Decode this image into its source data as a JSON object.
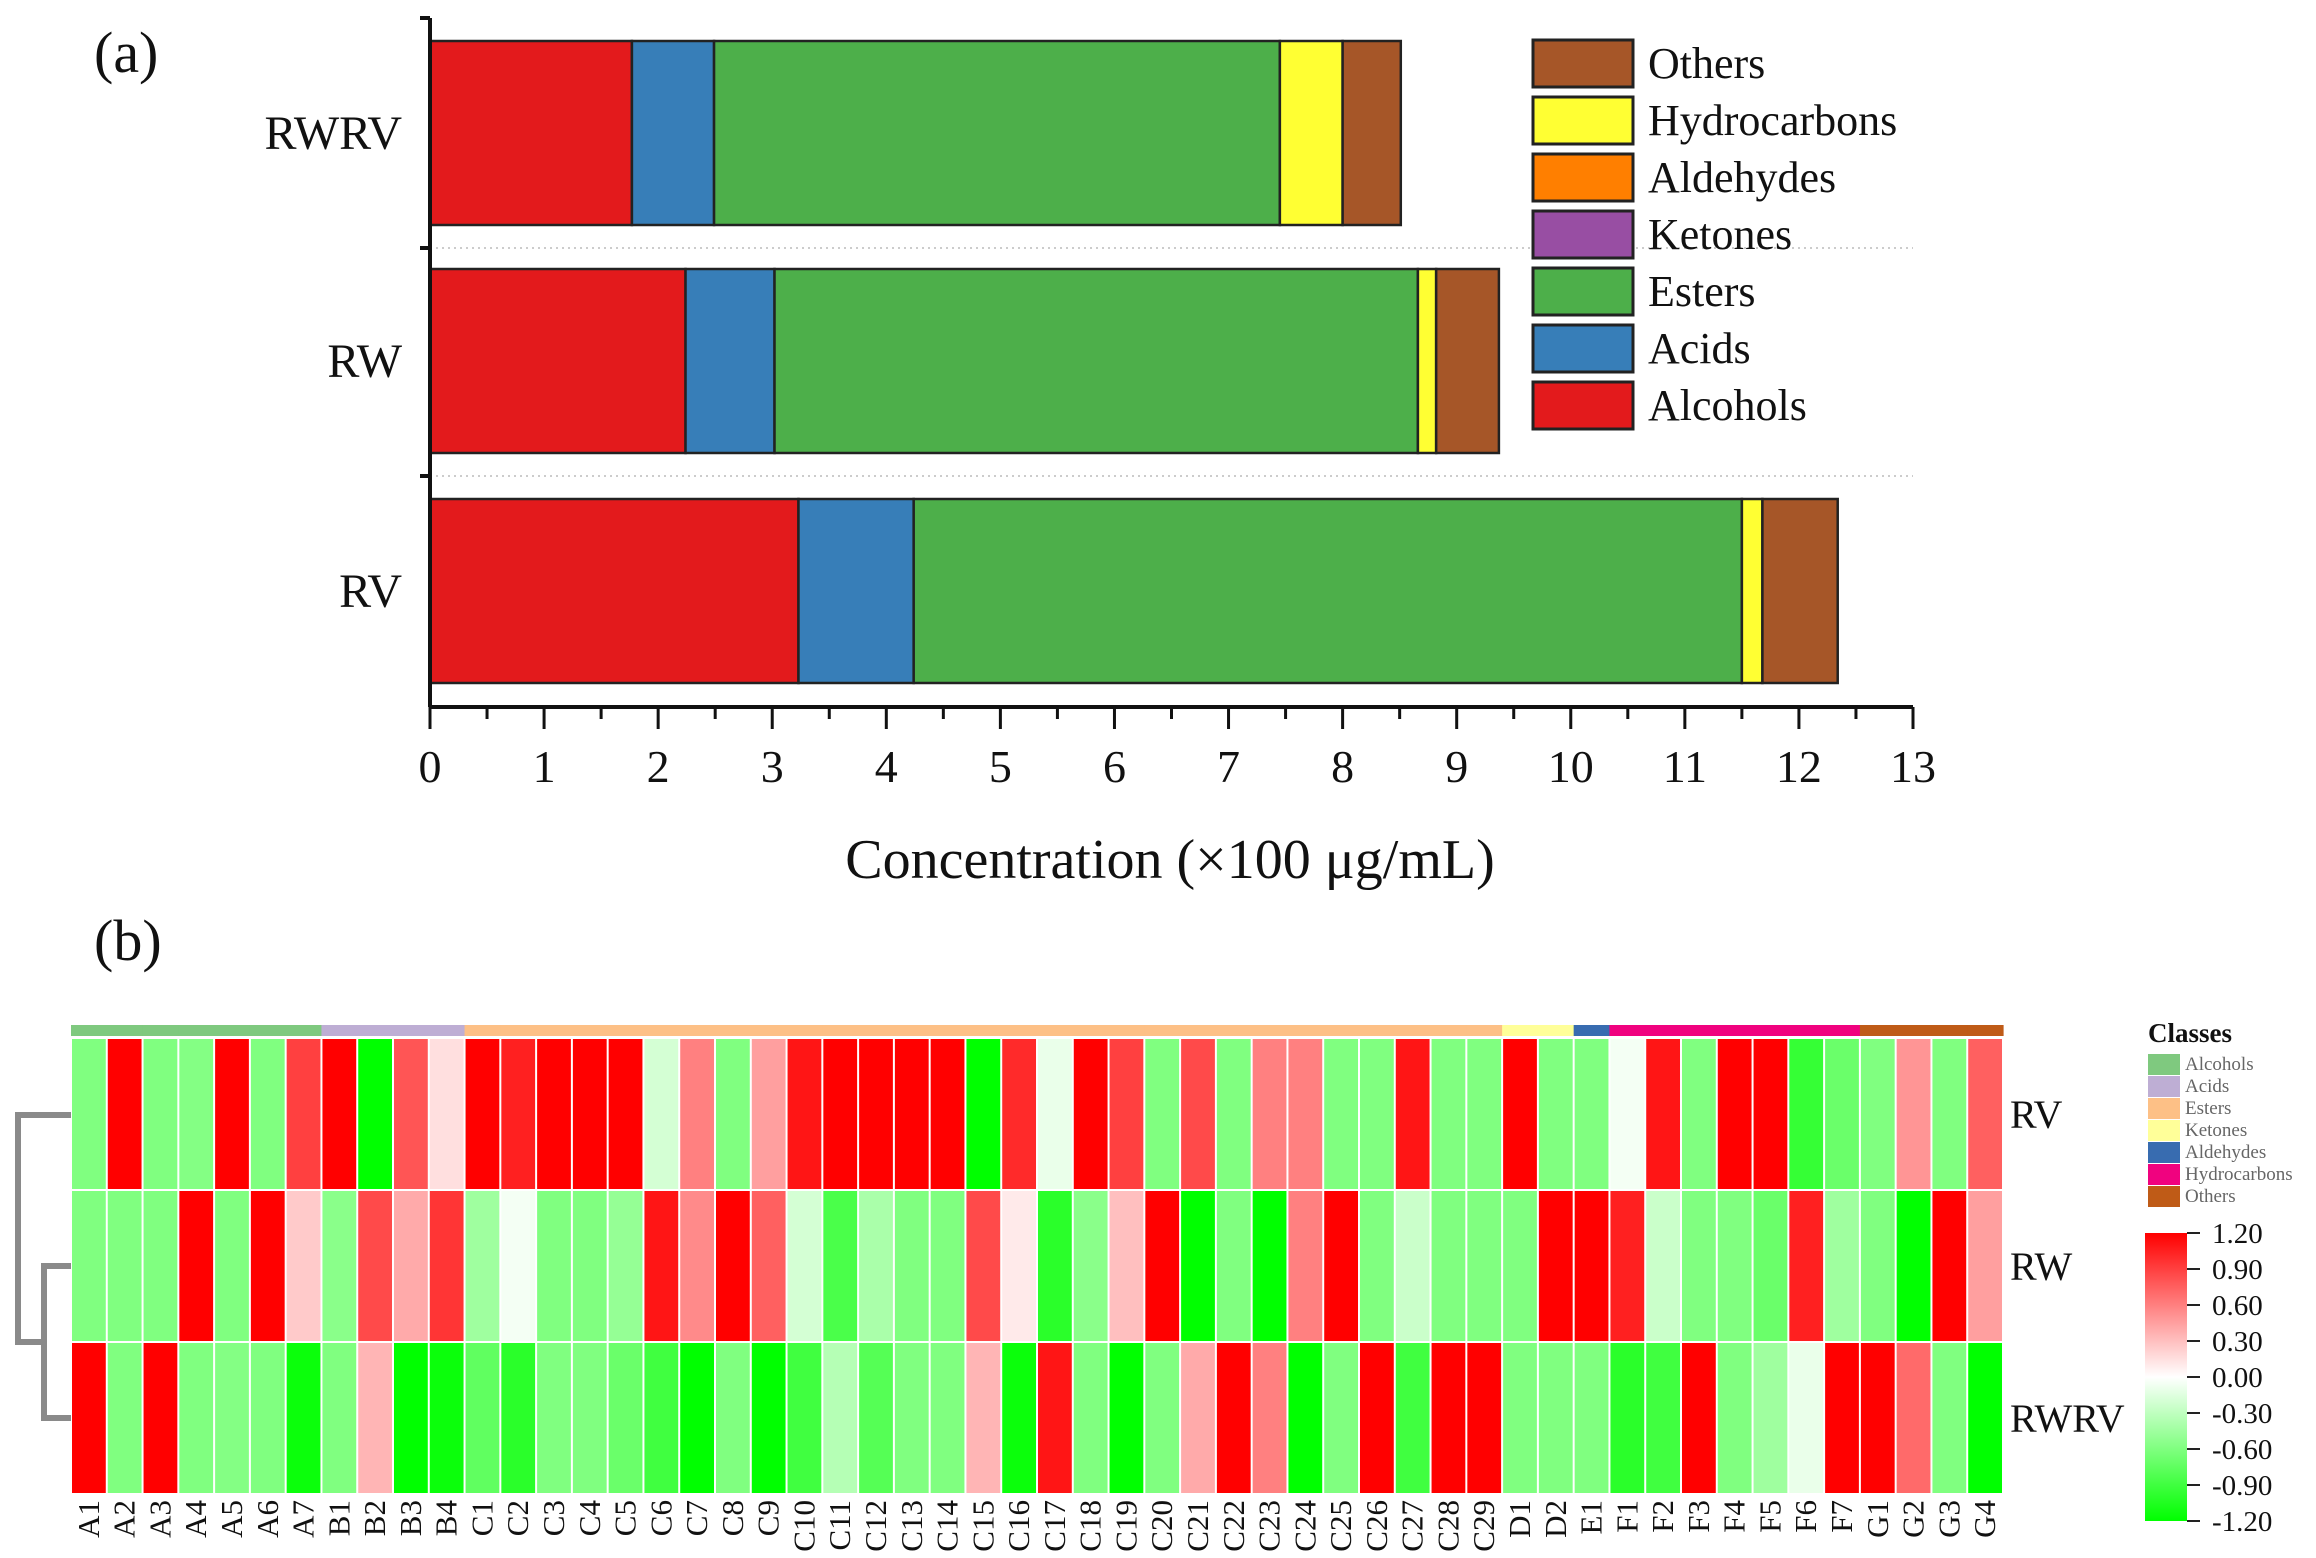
{
  "chart_data": [
    {
      "panel_label": "(a)",
      "type": "bar",
      "orientation": "horizontal-stacked",
      "categories": [
        "RWRV",
        "RW",
        "RV"
      ],
      "series": [
        {
          "name": "Alcohols",
          "color": "#e31a1c",
          "values": [
            1.77,
            2.24,
            3.23
          ]
        },
        {
          "name": "Acids",
          "color": "#377eb8",
          "values": [
            0.72,
            0.78,
            1.01
          ]
        },
        {
          "name": "Esters",
          "color": "#4daf4a",
          "values": [
            4.96,
            5.64,
            7.26
          ]
        },
        {
          "name": "Ketones",
          "color": "#984ea3",
          "values": [
            0,
            0,
            0
          ]
        },
        {
          "name": "Aldehydes",
          "color": "#ff7f00",
          "values": [
            0,
            0,
            0
          ]
        },
        {
          "name": "Hydrocarbons",
          "color": "#ffff33",
          "values": [
            0.55,
            0.16,
            0.18
          ]
        },
        {
          "name": "Others",
          "color": "#a65628",
          "values": [
            0.51,
            0.55,
            0.66
          ]
        }
      ],
      "legend_order": [
        "Others",
        "Hydrocarbons",
        "Aldehydes",
        "Ketones",
        "Esters",
        "Acids",
        "Alcohols"
      ],
      "legend_placement": "top-right",
      "xlabel": "Concentration (×100 μg/mL)",
      "xlim": [
        0,
        13
      ],
      "xticks": [
        "0",
        "1",
        "2",
        "3",
        "4",
        "5",
        "6",
        "7",
        "8",
        "9",
        "10",
        "11",
        "12",
        "13"
      ]
    },
    {
      "panel_label": "(b)",
      "type": "heatmap",
      "rows": [
        "RV",
        "RW",
        "RWRV"
      ],
      "columns": [
        "A1",
        "A2",
        "A3",
        "A4",
        "A5",
        "A6",
        "A7",
        "B1",
        "B2",
        "B3",
        "B4",
        "C1",
        "C2",
        "C3",
        "C4",
        "C5",
        "C6",
        "C7",
        "C8",
        "C9",
        "C10",
        "C11",
        "C12",
        "C13",
        "C14",
        "C15",
        "C16",
        "C17",
        "C18",
        "C19",
        "C20",
        "C21",
        "C22",
        "C23",
        "C24",
        "C25",
        "C26",
        "C27",
        "C28",
        "C29",
        "D1",
        "D2",
        "E1",
        "F1",
        "F2",
        "F3",
        "F4",
        "F5",
        "F6",
        "F7",
        "G1",
        "G2",
        "G3",
        "G4"
      ],
      "column_classes": [
        "Alcohols",
        "Alcohols",
        "Alcohols",
        "Alcohols",
        "Alcohols",
        "Alcohols",
        "Alcohols",
        "Acids",
        "Acids",
        "Acids",
        "Acids",
        "Esters",
        "Esters",
        "Esters",
        "Esters",
        "Esters",
        "Esters",
        "Esters",
        "Esters",
        "Esters",
        "Esters",
        "Esters",
        "Esters",
        "Esters",
        "Esters",
        "Esters",
        "Esters",
        "Esters",
        "Esters",
        "Esters",
        "Esters",
        "Esters",
        "Esters",
        "Esters",
        "Esters",
        "Esters",
        "Esters",
        "Esters",
        "Esters",
        "Esters",
        "Ketones",
        "Ketones",
        "Aldehydes",
        "Hydrocarbons",
        "Hydrocarbons",
        "Hydrocarbons",
        "Hydrocarbons",
        "Hydrocarbons",
        "Hydrocarbons",
        "Hydrocarbons",
        "Others",
        "Others",
        "Others",
        "Others"
      ],
      "values": [
        [
          -0.6,
          1.2,
          -0.6,
          -0.58,
          1.2,
          -0.6,
          0.9,
          1.2,
          -1.2,
          0.8,
          0.15,
          1.2,
          1.05,
          1.2,
          1.2,
          1.2,
          -0.2,
          0.6,
          -0.6,
          0.45,
          1.1,
          1.2,
          1.2,
          1.2,
          1.2,
          -1.2,
          1.0,
          -0.1,
          1.2,
          0.9,
          -0.6,
          0.85,
          -0.6,
          0.6,
          0.6,
          -0.6,
          -0.6,
          1.1,
          -0.6,
          -0.6,
          1.2,
          -0.6,
          -0.6,
          -0.05,
          1.1,
          -0.6,
          1.2,
          1.2,
          -0.95,
          -0.7,
          -0.6,
          0.5,
          -0.6,
          0.75
        ],
        [
          -0.6,
          -0.6,
          -0.6,
          1.2,
          -0.6,
          1.2,
          0.25,
          -0.55,
          0.85,
          0.4,
          0.95,
          -0.45,
          -0.05,
          -0.6,
          -0.6,
          -0.5,
          1.1,
          0.55,
          1.2,
          0.75,
          -0.2,
          -0.85,
          -0.4,
          -0.6,
          -0.6,
          0.85,
          0.1,
          -1.0,
          -0.55,
          0.3,
          1.2,
          -1.2,
          -0.6,
          -1.2,
          0.6,
          1.2,
          -0.6,
          -0.25,
          -0.6,
          -0.6,
          -0.6,
          1.2,
          1.2,
          1.05,
          -0.25,
          -0.6,
          -0.6,
          -0.7,
          1.05,
          -0.45,
          -0.6,
          -1.2,
          1.2,
          0.45
        ],
        [
          1.2,
          -0.6,
          1.2,
          -0.6,
          -0.58,
          -0.6,
          -1.15,
          -0.6,
          0.35,
          -1.2,
          -1.15,
          -0.75,
          -1.0,
          -0.6,
          -0.6,
          -0.7,
          -0.9,
          -1.2,
          -0.6,
          -1.2,
          -0.9,
          -0.35,
          -0.8,
          -0.6,
          -0.6,
          0.35,
          -1.15,
          1.1,
          -0.6,
          -1.2,
          -0.6,
          0.4,
          1.2,
          0.6,
          -1.2,
          -0.6,
          1.2,
          -0.9,
          1.2,
          1.2,
          -0.6,
          -0.6,
          -0.6,
          -1.0,
          -0.9,
          1.2,
          -0.6,
          -0.45,
          -0.1,
          1.2,
          1.2,
          0.7,
          -0.6,
          -1.2
        ]
      ],
      "classes_title": "Classes",
      "classes": [
        {
          "name": "Alcohols",
          "color": "#7fc97f"
        },
        {
          "name": "Acids",
          "color": "#beaed4"
        },
        {
          "name": "Esters",
          "color": "#fdc086"
        },
        {
          "name": "Ketones",
          "color": "#ffff99"
        },
        {
          "name": "Aldehydes",
          "color": "#386cb0"
        },
        {
          "name": "Hydrocarbons",
          "color": "#f0027f"
        },
        {
          "name": "Others",
          "color": "#bf5b17"
        }
      ],
      "colorbar_range": [
        -1.2,
        1.2
      ],
      "colorbar_colors": {
        "high": "#ff0000",
        "mid": "#ffffff",
        "low": "#00ff00"
      },
      "colorbar_ticks": [
        {
          "value": 1.2,
          "label": "1.20"
        },
        {
          "value": 0.9,
          "label": "0.90"
        },
        {
          "value": 0.6,
          "label": "0.60"
        },
        {
          "value": 0.3,
          "label": "0.30"
        },
        {
          "value": 0.0,
          "label": "0.00"
        },
        {
          "value": -0.3,
          "label": "-0.30"
        },
        {
          "value": -0.6,
          "label": "-0.60"
        },
        {
          "value": -0.9,
          "label": "-0.90"
        },
        {
          "value": -1.2,
          "label": "-1.20"
        }
      ],
      "dendrogram": "RV separate; RW and RWRV clustered"
    }
  ]
}
